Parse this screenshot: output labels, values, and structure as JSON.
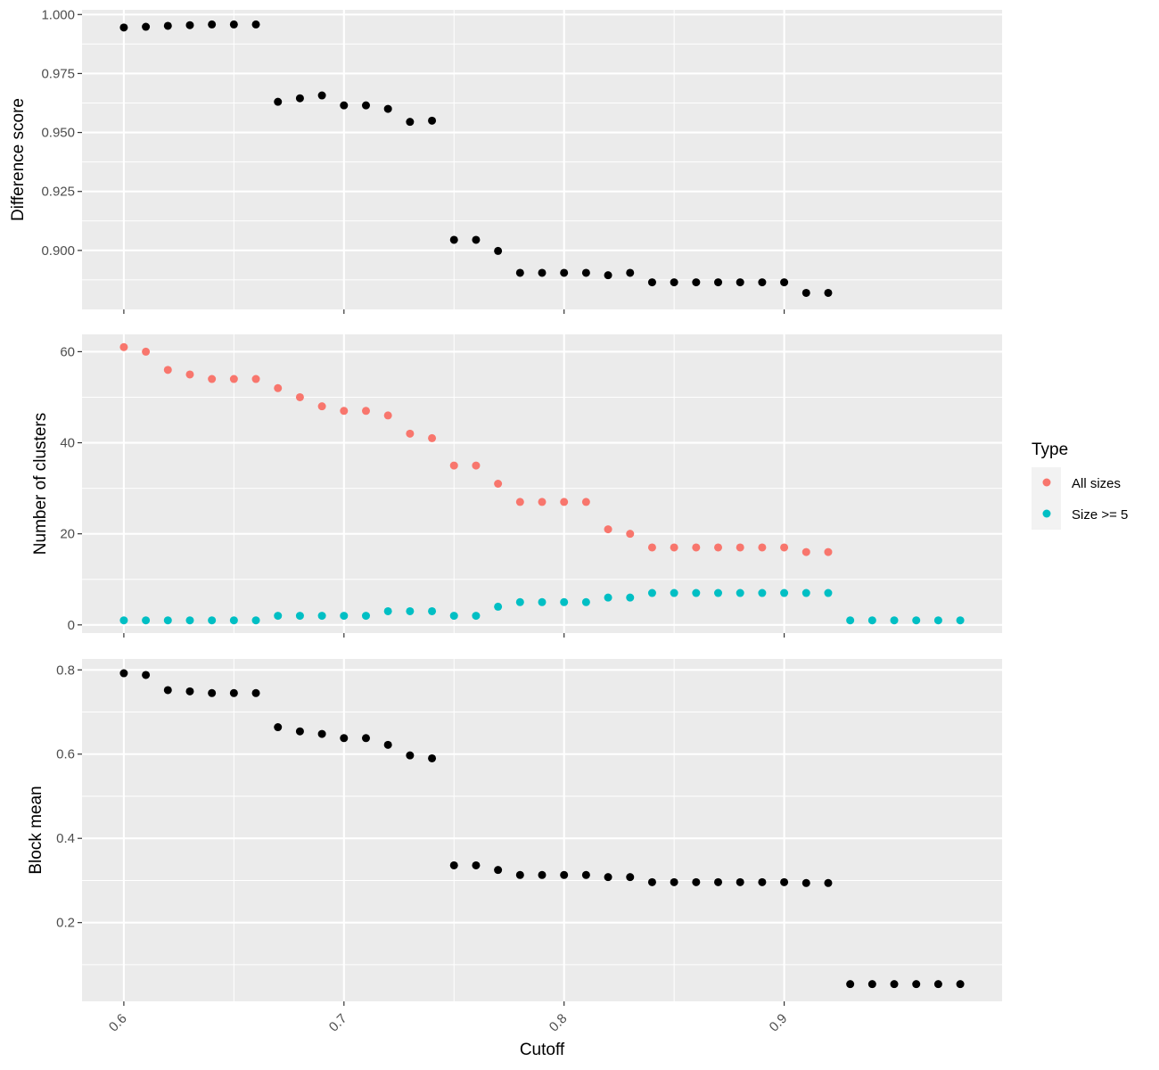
{
  "chart_data": {
    "type": "scatter",
    "x": [
      0.6,
      0.61,
      0.62,
      0.63,
      0.64,
      0.65,
      0.66,
      0.67,
      0.68,
      0.69,
      0.7,
      0.71,
      0.72,
      0.73,
      0.74,
      0.75,
      0.76,
      0.77,
      0.78,
      0.79,
      0.8,
      0.81,
      0.82,
      0.83,
      0.84,
      0.85,
      0.86,
      0.87,
      0.88,
      0.89,
      0.9,
      0.91,
      0.92,
      0.93,
      0.94,
      0.95,
      0.96,
      0.97,
      0.98
    ],
    "xlabel": "Cutoff",
    "xlim": [
      0.581,
      0.999
    ],
    "xticks": [
      0.6,
      0.7,
      0.8,
      0.9
    ],
    "xtick_labels": [
      "0.6",
      "0.7",
      "0.8",
      "0.9"
    ],
    "x_tick_label_rotation": 45,
    "grid": true,
    "panel_background": "#ebebeb",
    "grid_color": "#ffffff",
    "panels": [
      {
        "ylabel": "Difference score",
        "ylim": [
          0.875,
          1.002
        ],
        "yticks": [
          0.9,
          0.925,
          0.95,
          0.975,
          1.0
        ],
        "ytick_labels": [
          "0.900",
          "0.925",
          "0.950",
          "0.975",
          "1.000"
        ],
        "series": [
          {
            "color": "#000000",
            "values": [
              0.9945,
              0.9948,
              0.9952,
              0.9955,
              0.9958,
              0.9958,
              0.9958,
              0.963,
              0.9645,
              0.9657,
              0.9615,
              0.9615,
              0.96,
              0.9545,
              0.955,
              0.9045,
              0.9045,
              0.8998,
              0.8905,
              0.8905,
              0.8905,
              0.8905,
              0.8895,
              0.8905,
              0.8865,
              0.8865,
              0.8865,
              0.8865,
              0.8865,
              0.8865,
              0.8865,
              0.882,
              0.882,
              null,
              null,
              null,
              null,
              null,
              null
            ]
          }
        ]
      },
      {
        "ylabel": "Number of clusters",
        "ylim": [
          -1.8,
          63.8
        ],
        "yticks": [
          0,
          20,
          40,
          60
        ],
        "ytick_labels": [
          "0",
          "20",
          "40",
          "60"
        ],
        "legend": {
          "title": "Type",
          "position": "right"
        },
        "series": [
          {
            "name": "All sizes",
            "color": "#f8766d",
            "values": [
              61,
              60,
              56,
              55,
              54,
              54,
              54,
              52,
              50,
              48,
              47,
              47,
              46,
              42,
              41,
              35,
              35,
              31,
              27,
              27,
              27,
              27,
              21,
              20,
              17,
              17,
              17,
              17,
              17,
              17,
              17,
              16,
              16,
              null,
              null,
              null,
              null,
              null,
              null
            ]
          },
          {
            "name": "Size >= 5",
            "color": "#00bfc4",
            "values": [
              1,
              1,
              1,
              1,
              1,
              1,
              1,
              2,
              2,
              2,
              2,
              2,
              3,
              3,
              3,
              2,
              2,
              4,
              5,
              5,
              5,
              5,
              6,
              6,
              7,
              7,
              7,
              7,
              7,
              7,
              7,
              7,
              7,
              1,
              1,
              1,
              1,
              1,
              1
            ]
          }
        ]
      },
      {
        "ylabel": "Block mean",
        "ylim": [
          0.013,
          0.826
        ],
        "yticks": [
          0.2,
          0.4,
          0.6,
          0.8
        ],
        "ytick_labels": [
          "0.2",
          "0.4",
          "0.6",
          "0.8"
        ],
        "series": [
          {
            "color": "#000000",
            "values": [
              0.792,
              0.788,
              0.752,
              0.749,
              0.745,
              0.745,
              0.745,
              0.664,
              0.654,
              0.648,
              0.638,
              0.638,
              0.622,
              0.597,
              0.59,
              0.336,
              0.336,
              0.325,
              0.313,
              0.313,
              0.313,
              0.313,
              0.308,
              0.308,
              0.296,
              0.296,
              0.296,
              0.296,
              0.296,
              0.296,
              0.296,
              0.294,
              0.294,
              0.054,
              0.054,
              0.054,
              0.054,
              0.054,
              0.054
            ]
          }
        ]
      }
    ]
  }
}
